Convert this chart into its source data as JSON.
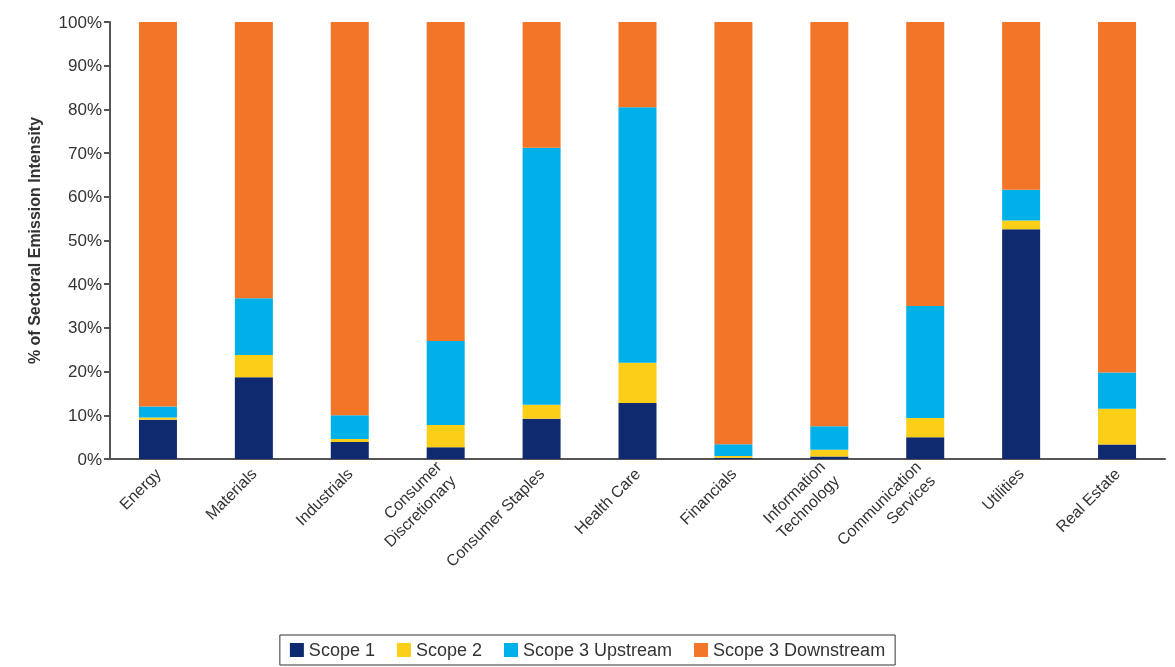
{
  "chart_data": {
    "type": "bar",
    "stacked": true,
    "ylabel": "% of Sectoral Emission Intensity",
    "categories": [
      "Energy",
      "Materials",
      "Industrials",
      "Consumer\nDiscretionary",
      "Consumer Staples",
      "Health Care",
      "Financials",
      "Information\nTechnology",
      "Communication\nServices",
      "Utilities",
      "Real Estate"
    ],
    "series": [
      {
        "name": "Scope 1",
        "color": "#0f2a6e",
        "values": [
          9,
          18.7,
          3.9,
          2.7,
          9.2,
          12.8,
          0.3,
          0.6,
          5,
          52.6,
          3.3
        ]
      },
      {
        "name": "Scope 2",
        "color": "#fbce17",
        "values": [
          0.5,
          5.1,
          0.7,
          5.1,
          3.2,
          9.2,
          0.4,
          1.5,
          4.4,
          2,
          8.2
        ]
      },
      {
        "name": "Scope 3 Upstream",
        "color": "#00b0e8",
        "values": [
          2.5,
          13,
          5.4,
          19.2,
          58.8,
          58.5,
          2.7,
          5.4,
          25.6,
          7,
          8.3
        ]
      },
      {
        "name": "Scope 3 Downstream",
        "color": "#f37528",
        "values": [
          88,
          63.2,
          90,
          73,
          28.8,
          19.5,
          96.6,
          92.5,
          65,
          38.4,
          80.2
        ]
      }
    ],
    "ylim": [
      0,
      100
    ],
    "yticks": [
      {
        "value": 0,
        "label": "0%"
      },
      {
        "value": 10,
        "label": "10%"
      },
      {
        "value": 20,
        "label": "20%"
      },
      {
        "value": 30,
        "label": "30%"
      },
      {
        "value": 40,
        "label": "40%"
      },
      {
        "value": 50,
        "label": "50%"
      },
      {
        "value": 60,
        "label": "60%"
      },
      {
        "value": 70,
        "label": "70%"
      },
      {
        "value": 80,
        "label": "80%"
      },
      {
        "value": 90,
        "label": "90%"
      },
      {
        "value": 100,
        "label": "100%"
      }
    ],
    "grid": false,
    "legend": "bottom"
  }
}
